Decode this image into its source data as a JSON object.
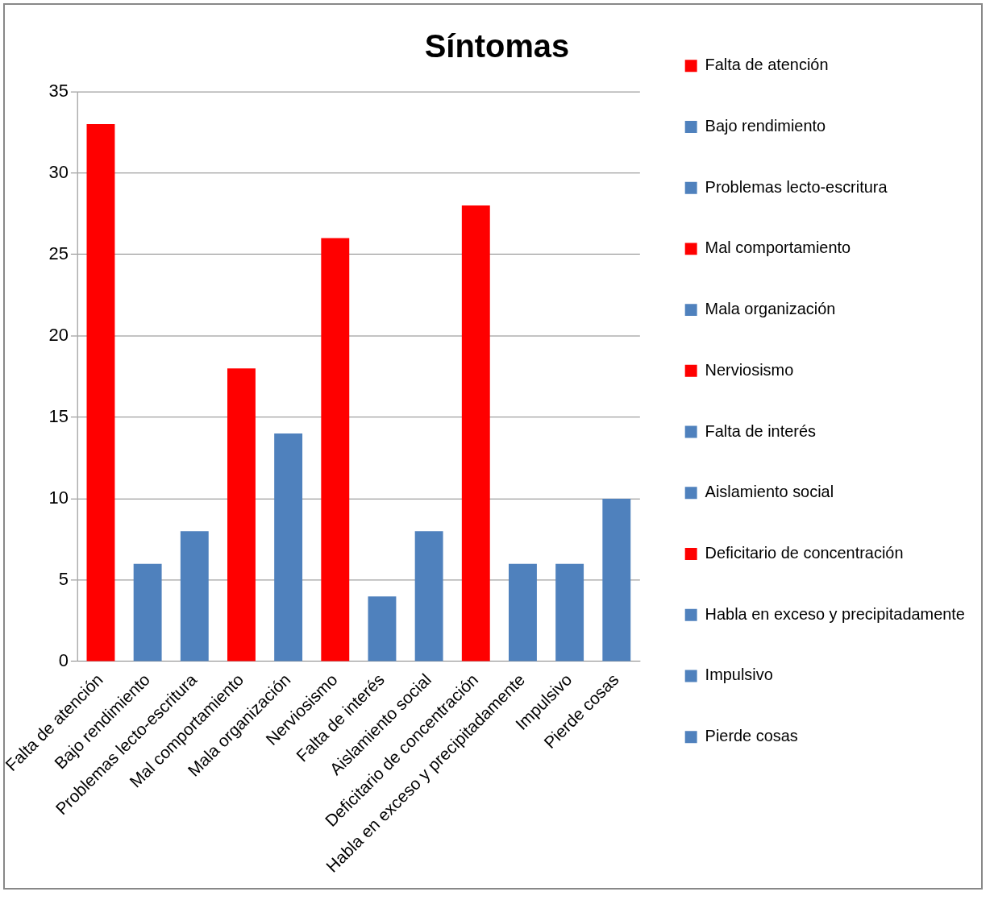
{
  "chart_data": {
    "type": "bar",
    "title": "Síntomas",
    "categories": [
      "Falta de atención",
      "Bajo rendimiento",
      "Problemas lecto-escritura",
      "Mal comportamiento",
      "Mala organización",
      "Nerviosismo",
      "Falta de interés",
      "Aislamiento social",
      "Deficitario de concentración",
      "Habla en exceso y precipitadamente",
      "Impulsivo",
      "Pierde cosas"
    ],
    "series": [
      {
        "name": "Falta de atención",
        "color": "#ff0000",
        "values": [
          33,
          null,
          null,
          null,
          null,
          null,
          null,
          null,
          null,
          null,
          null,
          null
        ]
      },
      {
        "name": "Bajo rendimiento",
        "color": "#4f81bd",
        "values": [
          null,
          6,
          null,
          null,
          null,
          null,
          null,
          null,
          null,
          null,
          null,
          null
        ]
      },
      {
        "name": "Problemas lecto-escritura",
        "color": "#4f81bd",
        "values": [
          null,
          null,
          8,
          null,
          null,
          null,
          null,
          null,
          null,
          null,
          null,
          null
        ]
      },
      {
        "name": "Mal comportamiento",
        "color": "#ff0000",
        "values": [
          null,
          null,
          null,
          18,
          null,
          null,
          null,
          null,
          null,
          null,
          null,
          null
        ]
      },
      {
        "name": "Mala organización",
        "color": "#4f81bd",
        "values": [
          null,
          null,
          null,
          null,
          14,
          null,
          null,
          null,
          null,
          null,
          null,
          null
        ]
      },
      {
        "name": "Nerviosismo",
        "color": "#ff0000",
        "values": [
          null,
          null,
          null,
          null,
          null,
          26,
          null,
          null,
          null,
          null,
          null,
          null
        ]
      },
      {
        "name": "Falta de interés",
        "color": "#4f81bd",
        "values": [
          null,
          null,
          null,
          null,
          null,
          null,
          4,
          null,
          null,
          null,
          null,
          null
        ]
      },
      {
        "name": "Aislamiento social",
        "color": "#4f81bd",
        "values": [
          null,
          null,
          null,
          null,
          null,
          null,
          null,
          8,
          null,
          null,
          null,
          null
        ]
      },
      {
        "name": "Deficitario de concentración",
        "color": "#ff0000",
        "values": [
          null,
          null,
          null,
          null,
          null,
          null,
          null,
          null,
          28,
          null,
          null,
          null
        ]
      },
      {
        "name": "Habla en exceso y precipitadamente",
        "color": "#4f81bd",
        "values": [
          null,
          null,
          null,
          null,
          null,
          null,
          null,
          null,
          null,
          6,
          null,
          null
        ]
      },
      {
        "name": "Impulsivo",
        "color": "#4f81bd",
        "values": [
          null,
          null,
          null,
          null,
          null,
          null,
          null,
          null,
          null,
          null,
          6,
          null
        ]
      },
      {
        "name": "Pierde cosas",
        "color": "#4f81bd",
        "values": [
          null,
          null,
          null,
          null,
          null,
          null,
          null,
          null,
          null,
          null,
          null,
          10
        ]
      }
    ],
    "ylim": [
      0,
      35
    ],
    "yticks": [
      0,
      5,
      10,
      15,
      20,
      25,
      30,
      35
    ],
    "grid": "y",
    "legend": "right"
  }
}
